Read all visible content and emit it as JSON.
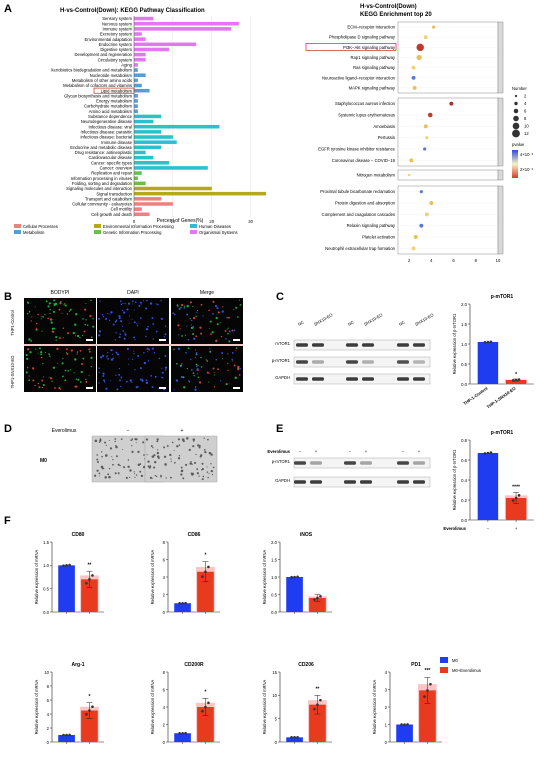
{
  "panelA": {
    "label": "A",
    "kegg_class": {
      "title": "H-vs-Control(Down): KEGG Pathway Classification",
      "xlabel": "Percent of Genes(%)",
      "xticks": [
        "0",
        "10",
        "20",
        "30"
      ],
      "legend": [
        "Cellular Processes",
        "Environmental Information Processing",
        "Human Diseases",
        "Metabolism",
        "Genetic Information Processing",
        "Organismal Systems"
      ],
      "colors": {
        "Organismal Systems": "#e377f2",
        "Metabolism": "#5b9bd5",
        "Human Diseases": "#2cc0cc",
        "Genetic Information Processing": "#6abf4b",
        "Environmental Information Processing": "#b5a81f",
        "Cellular Processes": "#f08080"
      },
      "highlight": "Lipid metabolism"
    },
    "kegg_top20": {
      "title1": "H-vs-Control(Down)",
      "title2": "KEGG Enrichment top 20",
      "xticks": [
        "2",
        "4",
        "6",
        "8",
        "10"
      ],
      "highlight": "PI3K−Akt signaling pathway",
      "legend_number_title": "Number",
      "legend_numbers": [
        "2",
        "4",
        "6",
        "8",
        "10",
        "12"
      ],
      "legend_pvalue_title": "pvalue",
      "legend_pvalue_ticks": [
        "4×10⁻³",
        "2×10⁻³"
      ]
    }
  },
  "chart_data": [
    {
      "type": "bar",
      "title": "H-vs-Control(Down): KEGG Pathway Classification",
      "xlabel": "Percent of Genes(%)",
      "xlim": [
        0,
        35
      ],
      "orientation": "horizontal",
      "categories": [
        "Sensory system",
        "Nervous system",
        "Immune system",
        "Excretory system",
        "Environmental adaptation",
        "Endocrine system",
        "Digestive system",
        "Development and regeneration",
        "Circulatory system",
        "Aging",
        "Xenobiotics biodegradation and metabolism",
        "Nucleotide metabolism",
        "Metabolism of other amino acids",
        "Metabolism of cofactors and vitamins",
        "Lipid metabolism",
        "Glycan biosynthesis and metabolism",
        "Energy metabolism",
        "Carbohydrate metabolism",
        "Amino acid metabolism",
        "Substance dependence",
        "Neurodegenerative disease",
        "Infectious disease: viral",
        "Infectious disease: parasitic",
        "Infectious disease: bacterial",
        "Immune disease",
        "Endocrine and metabolic disease",
        "Drug resistance: antineoplastic",
        "Cardiovascular disease",
        "Cancer: specific types",
        "Cancer: overview",
        "Replication and repair",
        "Information processing in viruses",
        "Folding, sorting and degradation",
        "Signaling molecules and interaction",
        "Signal transduction",
        "Transport and catabolism",
        "Cellular community - eukaryotes",
        "Cell motility",
        "Cell growth and death"
      ],
      "values": [
        5,
        27,
        25,
        2,
        3,
        16,
        9,
        3,
        3,
        1,
        1,
        3,
        1,
        2,
        4,
        1,
        1,
        1,
        1,
        7,
        5,
        22,
        7,
        10,
        11,
        7,
        3,
        5,
        9,
        19,
        2,
        1,
        3,
        20,
        34,
        7,
        10,
        2,
        4
      ],
      "groups": [
        "Organismal Systems",
        "Organismal Systems",
        "Organismal Systems",
        "Organismal Systems",
        "Organismal Systems",
        "Organismal Systems",
        "Organismal Systems",
        "Organismal Systems",
        "Organismal Systems",
        "Organismal Systems",
        "Metabolism",
        "Metabolism",
        "Metabolism",
        "Metabolism",
        "Metabolism",
        "Metabolism",
        "Metabolism",
        "Metabolism",
        "Metabolism",
        "Human Diseases",
        "Human Diseases",
        "Human Diseases",
        "Human Diseases",
        "Human Diseases",
        "Human Diseases",
        "Human Diseases",
        "Human Diseases",
        "Human Diseases",
        "Human Diseases",
        "Human Diseases",
        "Genetic Information Processing",
        "Genetic Information Processing",
        "Genetic Information Processing",
        "Environmental Information Processing",
        "Environmental Information Processing",
        "Cellular Processes",
        "Cellular Processes",
        "Cellular Processes",
        "Cellular Processes"
      ]
    },
    {
      "type": "scatter",
      "title": "KEGG Enrichment top 20",
      "xlim": [
        1,
        10
      ],
      "categories": [
        "ECM−receptor interaction",
        "Phospholipase D signaling pathway",
        "PI3K−Akt signaling pathway",
        "Rap1 signaling pathway",
        "Ras signaling pathway",
        "Neuroactive ligand−receptor interaction",
        "MAPK signaling pathway",
        "Staphylococcus aureus infection",
        "Systemic lupus erythematosus",
        "Amoebiasis",
        "Pertussis",
        "EGFR tyrosine kinase inhibitor resistance",
        "Coronavirus disease − COVID−19",
        "Nitrogen metabolism",
        "Proximal tubule bicarbonate reclamation",
        "Protein digestion and absorption",
        "Complement and coagulation cascades",
        "Relaxin signaling pathway",
        "Platelet activation",
        "Neutrophil extracellular trap formation"
      ],
      "x": [
        4.2,
        3.5,
        3.0,
        2.9,
        2.4,
        2.4,
        2.5,
        5.8,
        3.9,
        3.5,
        3.6,
        3.4,
        2.2,
        2.0,
        3.1,
        4.0,
        3.6,
        3.1,
        2.6,
        2.4
      ],
      "number": [
        2,
        3,
        8,
        5,
        3,
        3,
        3,
        3,
        4,
        3,
        2,
        2,
        3,
        1,
        2,
        3,
        3,
        3,
        3,
        3
      ]
    },
    {
      "type": "bar",
      "title": "p-mTOR1",
      "ylabel": "Relative expression of  p-mTOR1",
      "categories": [
        "THP-1-Control",
        "THP-1-SNX10-EO"
      ],
      "values": [
        1.05,
        0.1
      ],
      "ylim": [
        0,
        2.0
      ],
      "significance": [
        "",
        "*"
      ]
    },
    {
      "type": "bar",
      "title": "p-mTOR1",
      "ylabel": "Relative expression of  p-mTOR1",
      "categories": [
        "−",
        "+"
      ],
      "values": [
        0.67,
        0.22
      ],
      "ylim": [
        0,
        0.8
      ],
      "significance": [
        "",
        "****"
      ]
    },
    {
      "type": "bar",
      "title": "CD80",
      "ylabel": "Relative expression of mRNA",
      "categories": [
        "M0",
        "M0+Everolimus"
      ],
      "values": [
        1.0,
        0.7
      ],
      "ylim": [
        0,
        1.5
      ],
      "significance": [
        "",
        "**"
      ]
    },
    {
      "type": "bar",
      "title": "CD86",
      "ylabel": "Relative expression of mRNA",
      "categories": [
        "M0",
        "M0+Everolimus"
      ],
      "values": [
        1.0,
        4.6
      ],
      "ylim": [
        0,
        8
      ],
      "significance": [
        "",
        "*"
      ]
    },
    {
      "type": "bar",
      "title": "iNOS",
      "ylabel": "Relative expression of mRNA",
      "categories": [
        "M0",
        "M0+Everolimus"
      ],
      "values": [
        1.0,
        0.4
      ],
      "ylim": [
        0,
        2.0
      ],
      "significance": [
        "",
        ""
      ]
    },
    {
      "type": "bar",
      "title": "Arg-1",
      "ylabel": "Relative expression of mRNA",
      "categories": [
        "M0",
        "M0+Everolimus"
      ],
      "values": [
        1.0,
        4.5
      ],
      "ylim": [
        0,
        10
      ],
      "significance": [
        "",
        "*"
      ]
    },
    {
      "type": "bar",
      "title": "CD200R",
      "ylabel": "Relative expression of mRNA",
      "categories": [
        "M0",
        "M0+Everolimus"
      ],
      "values": [
        1.0,
        4.0
      ],
      "ylim": [
        0,
        8
      ],
      "significance": [
        "",
        "*"
      ]
    },
    {
      "type": "bar",
      "title": "CD206",
      "ylabel": "Relative expression of mRNA",
      "categories": [
        "M0",
        "M0+Everolimus"
      ],
      "values": [
        1.0,
        8.0
      ],
      "ylim": [
        0,
        15
      ],
      "significance": [
        "",
        "**"
      ]
    },
    {
      "type": "bar",
      "title": "PD1",
      "ylabel": "Relative expression of mRNA",
      "categories": [
        "M0",
        "M0+Everolimus"
      ],
      "values": [
        1.0,
        2.95
      ],
      "ylim": [
        0,
        4
      ],
      "significance": [
        "",
        "***"
      ]
    }
  ],
  "panelB": {
    "label": "B",
    "cols": [
      "BODYPI",
      "DAPI",
      "Merge"
    ],
    "rows": [
      "THP1-Control",
      "THP1-SNX10-EO"
    ]
  },
  "panelC": {
    "label": "C",
    "blot_cols": [
      "NC",
      "SNX10-EO",
      "NC",
      "SNX10-EO",
      "NC",
      "SNX10-EO"
    ],
    "rows": [
      "mTOR1",
      "p-mTOR1",
      "GAPDH"
    ],
    "chart_title": "p-mTOR1",
    "ylabel": "Relative expression of  p-mTOR1",
    "yticks": [
      "0.0",
      "0.5",
      "1.0",
      "1.5",
      "2.0"
    ]
  },
  "panelD": {
    "label": "D",
    "header": "Everolimus",
    "minus": "−",
    "plus": "+",
    "row": "M0"
  },
  "panelE": {
    "label": "E",
    "ever": "Everolimus",
    "signs": [
      "−",
      "+",
      "−",
      "+",
      "−",
      "+"
    ],
    "rows": [
      "p-mTOR1",
      "GAPDH"
    ],
    "chart_title": "p-mTOR1",
    "ylabel": "Relative expression of  p-mTOR1",
    "yticks": [
      "0.0",
      "0.2",
      "0.4",
      "0.6",
      "0.8"
    ],
    "xname": "Everolimus"
  },
  "panelF": {
    "label": "F",
    "ylabel": "Relative expression of mRNA",
    "legend": [
      "M0",
      "M0+Everolimus"
    ],
    "colors": {
      "M0": "#1f3cf0",
      "M0+Everolimus": "#e83a1e",
      "ctrl_hatch": "#f6a8a8"
    },
    "yticks": {
      "CD80": [
        "0.0",
        "0.5",
        "1.0",
        "1.5"
      ],
      "CD86": [
        "0",
        "2",
        "4",
        "6",
        "8"
      ],
      "iNOS": [
        "0.0",
        "0.5",
        "1.0",
        "1.5",
        "2.0"
      ],
      "Arg-1": [
        "0",
        "2",
        "4",
        "6",
        "8",
        "10"
      ],
      "CD200R": [
        "0",
        "2",
        "4",
        "6",
        "8"
      ],
      "CD206": [
        "0",
        "5",
        "10",
        "15"
      ],
      "PD1": [
        "0",
        "1",
        "2",
        "3",
        "4"
      ]
    }
  }
}
